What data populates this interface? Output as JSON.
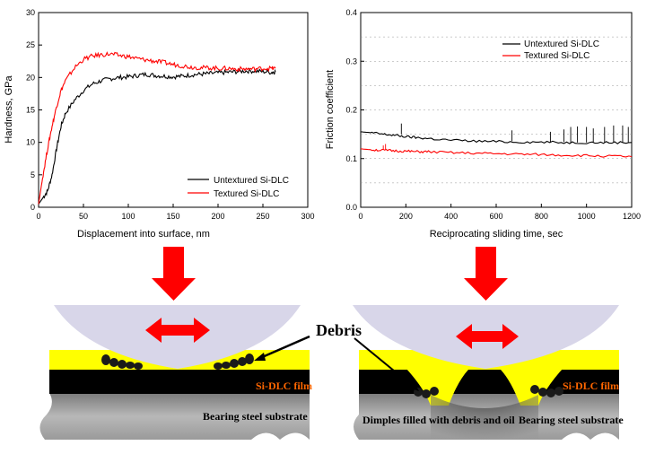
{
  "chart_data": [
    {
      "type": "line",
      "xlabel": "Displacement into surface, nm",
      "ylabel": "Hardness, GPa",
      "xlim": [
        0,
        300
      ],
      "ylim": [
        0,
        30
      ],
      "xticks": [
        "0",
        "50",
        "100",
        "150",
        "200",
        "250",
        "300"
      ],
      "yticks": [
        "0",
        "5",
        "10",
        "15",
        "20",
        "25",
        "30"
      ],
      "legend_position": "bottom-right",
      "series": [
        {
          "name": "Untextured Si-DLC",
          "color": "#000000",
          "x": [
            0,
            5,
            10,
            15,
            20,
            25,
            30,
            40,
            50,
            60,
            70,
            80,
            90,
            100,
            110,
            120,
            130,
            140,
            150,
            160,
            170,
            180,
            190,
            200,
            210,
            220,
            230,
            240,
            250,
            260,
            264
          ],
          "y": [
            0.5,
            1.5,
            2.5,
            5,
            9,
            12.5,
            14.5,
            16.5,
            18,
            19,
            19.5,
            19.8,
            20,
            20.1,
            20.3,
            20.5,
            20.3,
            20.2,
            20.1,
            20.2,
            20.4,
            20.5,
            20.6,
            20.7,
            20.8,
            20.9,
            21,
            21,
            20.9,
            20.8,
            20.9
          ]
        },
        {
          "name": "Textured Si-DLC",
          "color": "#ff0000",
          "x": [
            0,
            5,
            10,
            15,
            20,
            25,
            30,
            40,
            50,
            60,
            70,
            80,
            90,
            100,
            110,
            120,
            130,
            140,
            150,
            160,
            170,
            180,
            190,
            200,
            210,
            220,
            230,
            240,
            250,
            260,
            264
          ],
          "y": [
            0.5,
            5,
            9,
            12.5,
            15.5,
            18,
            19.5,
            21.5,
            22.8,
            23.3,
            23.5,
            23.6,
            23.4,
            23.2,
            22.9,
            22.7,
            22.5,
            22.3,
            22,
            21.8,
            21.6,
            21.5,
            21.5,
            21.4,
            21.4,
            21.3,
            21.3,
            21.3,
            21.4,
            21.4,
            21.4
          ]
        }
      ]
    },
    {
      "type": "line",
      "xlabel": "Reciprocating sliding time, sec",
      "ylabel": "Friction coefficient",
      "xlim": [
        0,
        1200
      ],
      "ylim": [
        0,
        0.4
      ],
      "xticks": [
        "0",
        "200",
        "400",
        "600",
        "800",
        "1000",
        "1200"
      ],
      "yticks": [
        "0.0",
        "0.1",
        "0.2",
        "0.3",
        "0.4"
      ],
      "legend_position": "top-right",
      "series": [
        {
          "name": "Untextured Si-DLC",
          "color": "#000000",
          "x": [
            0,
            50,
            100,
            150,
            200,
            250,
            300,
            400,
            500,
            600,
            700,
            800,
            900,
            1000,
            1100,
            1200
          ],
          "y": [
            0.155,
            0.153,
            0.15,
            0.148,
            0.145,
            0.143,
            0.141,
            0.138,
            0.136,
            0.135,
            0.134,
            0.134,
            0.133,
            0.133,
            0.133,
            0.133
          ],
          "spikes": [
            [
              180,
              0.172
            ],
            [
              670,
              0.158
            ],
            [
              840,
              0.155
            ],
            [
              900,
              0.16
            ],
            [
              930,
              0.165
            ],
            [
              960,
              0.166
            ],
            [
              1000,
              0.165
            ],
            [
              1030,
              0.162
            ],
            [
              1080,
              0.165
            ],
            [
              1120,
              0.168
            ],
            [
              1160,
              0.168
            ],
            [
              1185,
              0.165
            ]
          ]
        },
        {
          "name": "Textured Si-DLC",
          "color": "#ff0000",
          "x": [
            0,
            50,
            100,
            150,
            200,
            250,
            300,
            400,
            500,
            600,
            700,
            800,
            900,
            1000,
            1100,
            1200
          ],
          "y": [
            0.12,
            0.118,
            0.117,
            0.116,
            0.115,
            0.114,
            0.114,
            0.112,
            0.111,
            0.11,
            0.109,
            0.108,
            0.107,
            0.106,
            0.105,
            0.104
          ],
          "spikes": [
            [
              100,
              0.127
            ],
            [
              110,
              0.13
            ]
          ]
        }
      ]
    }
  ],
  "diagram": {
    "debris_label": "Debris",
    "left_film_label": "Si-DLC film",
    "left_substrate_label": "Bearing steel substrate",
    "right_film_label": "Si-DLC film",
    "right_substrate_label": "Bearing steel substrate",
    "dimples_label": "Dimples filled with debris and oil"
  }
}
